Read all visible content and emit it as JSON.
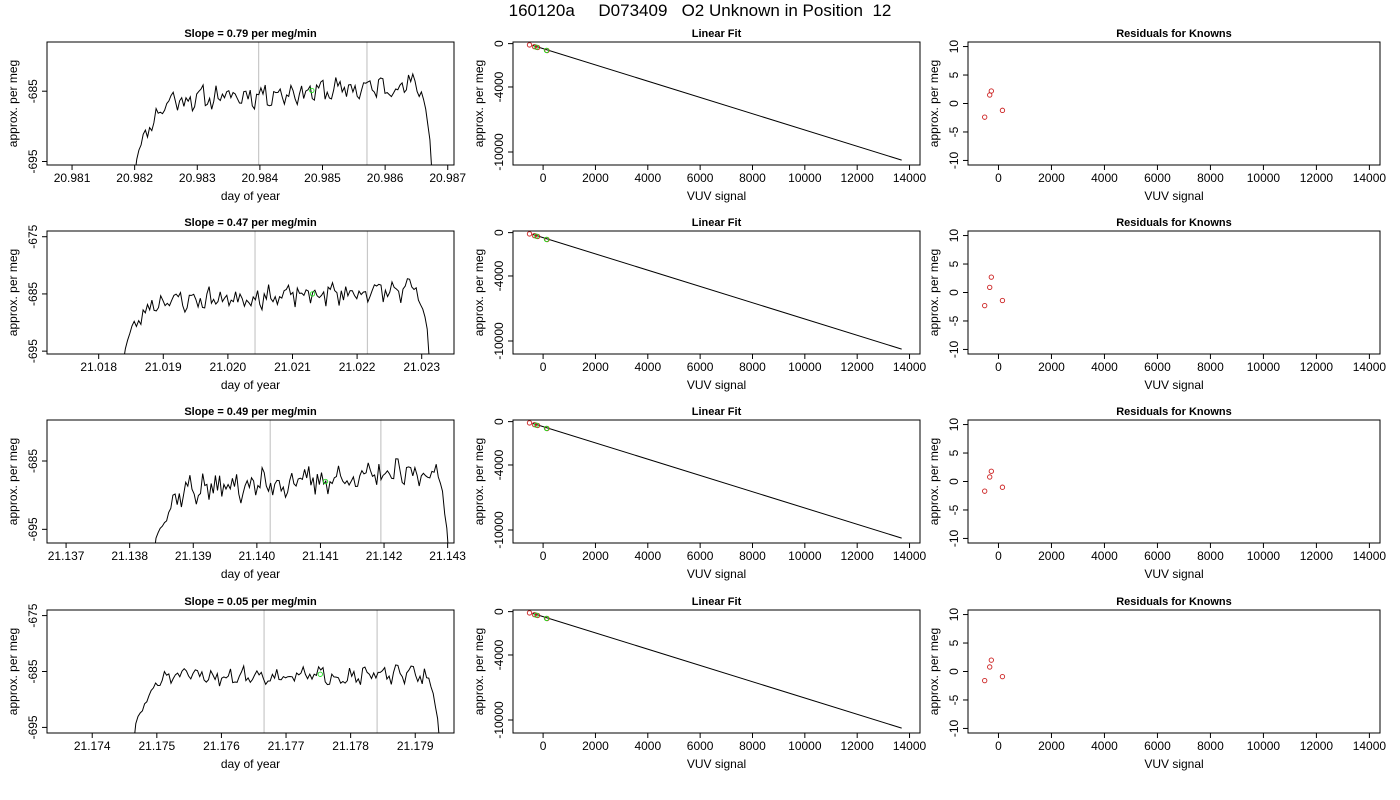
{
  "title": "160120a     D073409   O2 Unknown in Position  12",
  "colors": {
    "line": "#000000",
    "grid": "#c8c8c8",
    "known": "#cc2222",
    "unknown": "#22dd22"
  },
  "chart_data": [
    {
      "type": "line",
      "row": 0,
      "col": 0,
      "title": "Slope =  0.79  per meg/min",
      "xlabel": "day of year",
      "ylabel": "approx. per meg",
      "xlim": [
        20.9806,
        20.9871
      ],
      "ylim": [
        -695.5,
        -678
      ],
      "xticks": [
        20.981,
        20.982,
        20.983,
        20.984,
        20.985,
        20.986,
        20.987
      ],
      "xtick_labels": [
        "20.981",
        "20.982",
        "20.983",
        "20.984",
        "20.985",
        "20.986",
        "20.987"
      ],
      "yticks": [
        -695,
        -685
      ],
      "ytick_labels": [
        "-695",
        "-685"
      ],
      "vlines": [
        20.98398,
        20.98571
      ],
      "trace": {
        "x_start": 20.982,
        "x_end": 20.98675,
        "n": 140,
        "base": -686.6,
        "trend": 2.6,
        "ramp_from": -697,
        "ramp_len": 16,
        "drop_len": 6,
        "amp": 1.3,
        "seed": 11
      },
      "unknown_points": [
        [
          20.98483,
          -684.9
        ]
      ]
    },
    {
      "type": "line",
      "row": 1,
      "col": 0,
      "title": "Slope =  0.47  per meg/min",
      "xlabel": "day of year",
      "ylabel": "approx. per meg",
      "xlim": [
        21.0172,
        21.0235
      ],
      "ylim": [
        -695.5,
        -674
      ],
      "xticks": [
        21.018,
        21.019,
        21.02,
        21.021,
        21.022,
        21.023
      ],
      "xtick_labels": [
        "21.018",
        "21.019",
        "21.020",
        "21.021",
        "21.022",
        "21.023"
      ],
      "yticks": [
        -695,
        -685,
        -675
      ],
      "ytick_labels": [
        "-695",
        "-685",
        "-675"
      ],
      "vlines": [
        21.02042,
        21.02216
      ],
      "trace": {
        "x_start": 21.01838,
        "x_end": 21.02312,
        "n": 140,
        "base": -686.6,
        "trend": 2.4,
        "ramp_from": -697,
        "ramp_len": 14,
        "drop_len": 6,
        "amp": 1.5,
        "seed": 23
      },
      "unknown_points": [
        [
          21.02131,
          -685.0
        ]
      ]
    },
    {
      "type": "line",
      "row": 2,
      "col": 0,
      "title": "Slope =  0.49  per meg/min",
      "xlabel": "day of year",
      "ylabel": "approx. per meg",
      "xlim": [
        21.1367,
        21.1431
      ],
      "ylim": [
        -697,
        -679
      ],
      "xticks": [
        21.137,
        21.138,
        21.139,
        21.14,
        21.141,
        21.142,
        21.143
      ],
      "xtick_labels": [
        "21.137",
        "21.138",
        "21.139",
        "21.140",
        "21.141",
        "21.142",
        "21.143"
      ],
      "yticks": [
        -695,
        -685
      ],
      "ytick_labels": [
        "-695",
        "-685"
      ],
      "vlines": [
        21.14021,
        21.14195
      ],
      "trace": {
        "x_start": 21.13838,
        "x_end": 21.14302,
        "n": 140,
        "base": -689.5,
        "trend": 3.0,
        "ramp_from": -699,
        "ramp_len": 14,
        "drop_len": 6,
        "amp": 1.6,
        "seed": 37
      },
      "unknown_points": [
        [
          21.14108,
          -688.0
        ]
      ]
    },
    {
      "type": "line",
      "row": 3,
      "col": 0,
      "title": "Slope =  0.05  per meg/min",
      "xlabel": "day of year",
      "ylabel": "approx. per meg",
      "xlim": [
        21.1733,
        21.1796
      ],
      "ylim": [
        -696,
        -674
      ],
      "xticks": [
        21.174,
        21.175,
        21.176,
        21.177,
        21.178,
        21.179
      ],
      "xtick_labels": [
        "21.174",
        "21.175",
        "21.176",
        "21.177",
        "21.178",
        "21.179"
      ],
      "yticks": [
        -695,
        -685,
        -675
      ],
      "ytick_labels": [
        "-695",
        "-685",
        "-675"
      ],
      "vlines": [
        21.17666,
        21.17841
      ],
      "trace": {
        "x_start": 21.17464,
        "x_end": 21.17938,
        "n": 140,
        "base": -685.9,
        "trend": 0.3,
        "ramp_from": -698,
        "ramp_len": 14,
        "drop_len": 6,
        "amp": 1.2,
        "seed": 51
      },
      "unknown_points": [
        [
          21.17753,
          -685.5
        ]
      ]
    },
    {
      "type": "scatter",
      "row": 0,
      "col": 1,
      "title": "Linear Fit",
      "xlabel": "VUV signal",
      "ylabel": "approx. per meg",
      "xlim": [
        -1150,
        14400
      ],
      "ylim": [
        -11200,
        150
      ],
      "xticks": [
        0,
        2000,
        4000,
        6000,
        8000,
        10000,
        12000,
        14000
      ],
      "xtick_labels": [
        "0",
        "2000",
        "4000",
        "6000",
        "8000",
        "10000",
        "12000",
        "14000"
      ],
      "yticks": [
        0,
        -4000,
        -10000
      ],
      "ytick_labels": [
        "0",
        "-4000",
        "-10000"
      ],
      "fit_line": [
        [
          -400,
          -160
        ],
        [
          13700,
          -10750
        ]
      ],
      "known_points": [
        [
          -520,
          -120
        ],
        [
          -330,
          -280
        ],
        [
          -210,
          -360
        ],
        [
          150,
          -640
        ]
      ],
      "unknown_points": [
        [
          -260,
          -320
        ],
        [
          130,
          -620
        ]
      ]
    },
    {
      "type": "scatter",
      "row": 1,
      "col": 1,
      "title": "Linear Fit",
      "xlabel": "VUV signal",
      "ylabel": "approx. per meg",
      "xlim": [
        -1150,
        14400
      ],
      "ylim": [
        -11200,
        150
      ],
      "xticks": [
        0,
        2000,
        4000,
        6000,
        8000,
        10000,
        12000,
        14000
      ],
      "xtick_labels": [
        "0",
        "2000",
        "4000",
        "6000",
        "8000",
        "10000",
        "12000",
        "14000"
      ],
      "yticks": [
        0,
        -4000,
        -10000
      ],
      "ytick_labels": [
        "0",
        "-4000",
        "-10000"
      ],
      "fit_line": [
        [
          -400,
          -160
        ],
        [
          13700,
          -10750
        ]
      ],
      "known_points": [
        [
          -520,
          -120
        ],
        [
          -330,
          -280
        ],
        [
          -210,
          -360
        ],
        [
          150,
          -640
        ]
      ],
      "unknown_points": [
        [
          -260,
          -320
        ],
        [
          130,
          -620
        ]
      ]
    },
    {
      "type": "scatter",
      "row": 2,
      "col": 1,
      "title": "Linear Fit",
      "xlabel": "VUV signal",
      "ylabel": "approx. per meg",
      "xlim": [
        -1150,
        14400
      ],
      "ylim": [
        -11200,
        150
      ],
      "xticks": [
        0,
        2000,
        4000,
        6000,
        8000,
        10000,
        12000,
        14000
      ],
      "xtick_labels": [
        "0",
        "2000",
        "4000",
        "6000",
        "8000",
        "10000",
        "12000",
        "14000"
      ],
      "yticks": [
        0,
        -4000,
        -10000
      ],
      "ytick_labels": [
        "0",
        "-4000",
        "-10000"
      ],
      "fit_line": [
        [
          -400,
          -160
        ],
        [
          13700,
          -10750
        ]
      ],
      "known_points": [
        [
          -520,
          -120
        ],
        [
          -330,
          -280
        ],
        [
          -210,
          -360
        ],
        [
          150,
          -640
        ]
      ],
      "unknown_points": [
        [
          -260,
          -320
        ],
        [
          130,
          -620
        ]
      ]
    },
    {
      "type": "scatter",
      "row": 3,
      "col": 1,
      "title": "Linear Fit",
      "xlabel": "VUV signal",
      "ylabel": "approx. per meg",
      "xlim": [
        -1150,
        14400
      ],
      "ylim": [
        -11200,
        150
      ],
      "xticks": [
        0,
        2000,
        4000,
        6000,
        8000,
        10000,
        12000,
        14000
      ],
      "xtick_labels": [
        "0",
        "2000",
        "4000",
        "6000",
        "8000",
        "10000",
        "12000",
        "14000"
      ],
      "yticks": [
        0,
        -4000,
        -10000
      ],
      "ytick_labels": [
        "0",
        "-4000",
        "-10000"
      ],
      "fit_line": [
        [
          -400,
          -160
        ],
        [
          13700,
          -10750
        ]
      ],
      "known_points": [
        [
          -520,
          -120
        ],
        [
          -330,
          -280
        ],
        [
          -210,
          -360
        ],
        [
          150,
          -640
        ]
      ],
      "unknown_points": [
        [
          -260,
          -320
        ],
        [
          130,
          -620
        ]
      ]
    },
    {
      "type": "scatter",
      "row": 0,
      "col": 2,
      "title": "Residuals for Knowns",
      "xlabel": "VUV signal",
      "ylabel": "approx. per meg",
      "xlim": [
        -1150,
        14400
      ],
      "ylim": [
        -10.8,
        10.8
      ],
      "xticks": [
        0,
        2000,
        4000,
        6000,
        8000,
        10000,
        12000,
        14000
      ],
      "xtick_labels": [
        "0",
        "2000",
        "4000",
        "6000",
        "8000",
        "10000",
        "12000",
        "14000"
      ],
      "yticks": [
        -10,
        -5,
        0,
        5,
        10
      ],
      "ytick_labels": [
        "-10",
        "-5",
        "0",
        "5",
        "10"
      ],
      "known_points": [
        [
          -520,
          -2.4
        ],
        [
          -330,
          1.5
        ],
        [
          -270,
          2.2
        ],
        [
          150,
          -1.2
        ]
      ]
    },
    {
      "type": "scatter",
      "row": 1,
      "col": 2,
      "title": "Residuals for Knowns",
      "xlabel": "VUV signal",
      "ylabel": "approx. per meg",
      "xlim": [
        -1150,
        14400
      ],
      "ylim": [
        -10.8,
        10.8
      ],
      "xticks": [
        0,
        2000,
        4000,
        6000,
        8000,
        10000,
        12000,
        14000
      ],
      "xtick_labels": [
        "0",
        "2000",
        "4000",
        "6000",
        "8000",
        "10000",
        "12000",
        "14000"
      ],
      "yticks": [
        -10,
        -5,
        0,
        5,
        10
      ],
      "ytick_labels": [
        "-10",
        "-5",
        "0",
        "5",
        "10"
      ],
      "known_points": [
        [
          -520,
          -2.3
        ],
        [
          -330,
          0.9
        ],
        [
          -270,
          2.7
        ],
        [
          150,
          -1.4
        ]
      ]
    },
    {
      "type": "scatter",
      "row": 2,
      "col": 2,
      "title": "Residuals for Knowns",
      "xlabel": "VUV signal",
      "ylabel": "approx. per meg",
      "xlim": [
        -1150,
        14400
      ],
      "ylim": [
        -10.8,
        10.8
      ],
      "xticks": [
        0,
        2000,
        4000,
        6000,
        8000,
        10000,
        12000,
        14000
      ],
      "xtick_labels": [
        "0",
        "2000",
        "4000",
        "6000",
        "8000",
        "10000",
        "12000",
        "14000"
      ],
      "yticks": [
        -10,
        -5,
        0,
        5,
        10
      ],
      "ytick_labels": [
        "-10",
        "-5",
        "0",
        "5",
        "10"
      ],
      "known_points": [
        [
          -520,
          -1.7
        ],
        [
          -330,
          0.8
        ],
        [
          -270,
          1.8
        ],
        [
          150,
          -1.0
        ]
      ]
    },
    {
      "type": "scatter",
      "row": 3,
      "col": 2,
      "title": "Residuals for Knowns",
      "xlabel": "VUV signal",
      "ylabel": "approx. per meg",
      "xlim": [
        -1150,
        14400
      ],
      "ylim": [
        -10.8,
        10.8
      ],
      "xticks": [
        0,
        2000,
        4000,
        6000,
        8000,
        10000,
        12000,
        14000
      ],
      "xtick_labels": [
        "0",
        "2000",
        "4000",
        "6000",
        "8000",
        "10000",
        "12000",
        "14000"
      ],
      "yticks": [
        -10,
        -5,
        0,
        5,
        10
      ],
      "ytick_labels": [
        "-10",
        "-5",
        "0",
        "5",
        "10"
      ],
      "known_points": [
        [
          -520,
          -1.6
        ],
        [
          -330,
          0.8
        ],
        [
          -270,
          2.0
        ],
        [
          150,
          -0.9
        ]
      ]
    }
  ]
}
